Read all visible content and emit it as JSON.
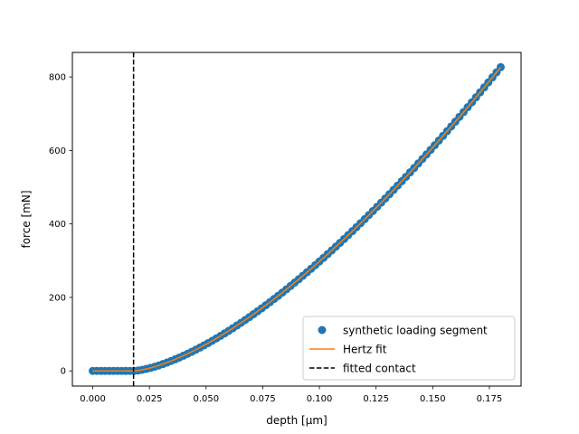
{
  "chart_data": {
    "type": "scatter",
    "title": "",
    "xlabel": "depth [µm]",
    "ylabel": "force [mN]",
    "xlim": [
      -0.009,
      0.189
    ],
    "ylim": [
      -41.3,
      866.7
    ],
    "xticks": [
      0.0,
      0.025,
      0.05,
      0.075,
      0.1,
      0.125,
      0.15,
      0.175
    ],
    "xtick_labels": [
      "0.000",
      "0.025",
      "0.050",
      "0.075",
      "0.100",
      "0.125",
      "0.150",
      "0.175"
    ],
    "yticks": [
      0,
      200,
      400,
      600,
      800
    ],
    "ytick_labels": [
      "0",
      "200",
      "400",
      "600",
      "800"
    ],
    "grid": false,
    "legend_position": "lower-right",
    "series": [
      {
        "name": "synthetic loading segment",
        "kind": "scatter",
        "color": "#1f77b4",
        "x_start": 0.0,
        "x_end": 0.18,
        "n_points": 100,
        "contact_depth": 0.018,
        "force_at_end": 826.6,
        "exponent": 1.5
      },
      {
        "name": "Hertz fit",
        "kind": "line",
        "color": "#ff7f0e",
        "x_start": 0.0,
        "x_end": 0.18,
        "contact_depth": 0.018,
        "force_at_end": 826.6,
        "exponent": 1.5
      },
      {
        "name": "fitted contact",
        "kind": "vline",
        "color": "#000000",
        "linestyle": "dashed",
        "x": 0.018
      }
    ]
  }
}
